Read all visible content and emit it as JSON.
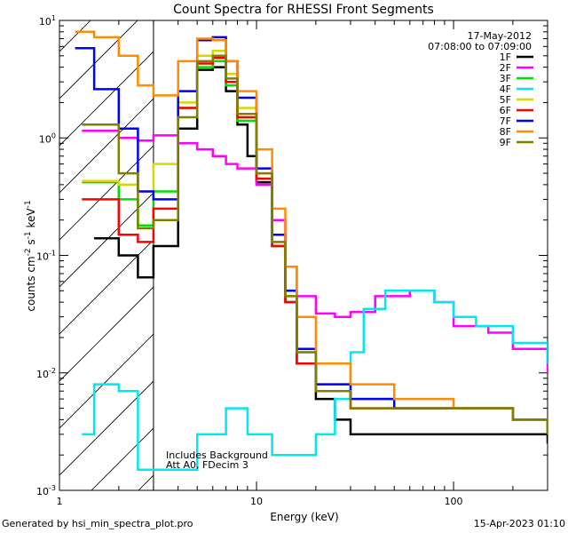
{
  "chart_data": {
    "type": "line",
    "title": "Count Spectra for RHESSI Front Segments",
    "xlabel": "Energy (keV)",
    "ylabel_parts": [
      "counts cm",
      "-2",
      " s",
      "-1",
      " keV",
      "-1"
    ],
    "xscale": "log",
    "yscale": "log",
    "xlim": [
      1,
      300
    ],
    "ylim": [
      0.001,
      10
    ],
    "x_tick_labels": [
      "1",
      "10",
      "100"
    ],
    "y_tick_labels": [
      {
        "base": "10",
        "exp": "1"
      },
      {
        "base": "10",
        "exp": "0"
      },
      {
        "base": "10",
        "exp": "-1"
      },
      {
        "base": "10",
        "exp": "-2"
      },
      {
        "base": "10",
        "exp": "-3"
      }
    ],
    "info_date": "17-May-2012",
    "info_time": "07:08:00 to 07:09:00",
    "annotation_line1": "Includes Background",
    "annotation_line2": "Att A0, FDecim 3",
    "excluded_region_keV": [
      1,
      3
    ],
    "series": [
      {
        "name": "1F",
        "color": "#000000",
        "points": [
          [
            1.5,
            0.14
          ],
          [
            2.0,
            0.1
          ],
          [
            2.5,
            0.065
          ],
          [
            3.0,
            0.12
          ],
          [
            4.0,
            1.2
          ],
          [
            5.0,
            3.8
          ],
          [
            6.0,
            4.0
          ],
          [
            7.0,
            2.5
          ],
          [
            8.0,
            1.3
          ],
          [
            9.0,
            0.7
          ],
          [
            10,
            0.42
          ],
          [
            12,
            0.12
          ],
          [
            14,
            0.04
          ],
          [
            16,
            0.012
          ],
          [
            20,
            0.006
          ],
          [
            25,
            0.004
          ],
          [
            30,
            0.003
          ],
          [
            40,
            0.003
          ],
          [
            60,
            0.003
          ],
          [
            100,
            0.003
          ],
          [
            150,
            0.003
          ],
          [
            200,
            0.003
          ],
          [
            300,
            0.0025
          ]
        ]
      },
      {
        "name": "2F",
        "color": "#ff00ff",
        "points": [
          [
            1.3,
            1.15
          ],
          [
            2.0,
            1.0
          ],
          [
            2.5,
            0.95
          ],
          [
            3.0,
            1.05
          ],
          [
            4.0,
            0.9
          ],
          [
            5.0,
            0.8
          ],
          [
            6.0,
            0.7
          ],
          [
            7.0,
            0.6
          ],
          [
            8.0,
            0.55
          ],
          [
            10,
            0.4
          ],
          [
            12,
            0.2
          ],
          [
            14,
            0.08
          ],
          [
            16,
            0.045
          ],
          [
            20,
            0.032
          ],
          [
            25,
            0.03
          ],
          [
            30,
            0.033
          ],
          [
            40,
            0.045
          ],
          [
            60,
            0.05
          ],
          [
            80,
            0.04
          ],
          [
            100,
            0.025
          ],
          [
            150,
            0.022
          ],
          [
            200,
            0.016
          ],
          [
            300,
            0.01
          ]
        ]
      },
      {
        "name": "3F",
        "color": "#00e000",
        "points": [
          [
            1.3,
            0.42
          ],
          [
            2.0,
            0.3
          ],
          [
            2.5,
            0.18
          ],
          [
            3.0,
            0.35
          ],
          [
            4.0,
            1.8
          ],
          [
            5.0,
            4.0
          ],
          [
            6.0,
            4.5
          ],
          [
            7.0,
            2.8
          ],
          [
            8.0,
            1.4
          ],
          [
            10,
            0.45
          ],
          [
            12,
            0.12
          ],
          [
            14,
            0.04
          ],
          [
            16,
            0.012
          ],
          [
            20,
            0.007
          ],
          [
            30,
            0.006
          ],
          [
            50,
            0.005
          ],
          [
            100,
            0.005
          ],
          [
            200,
            0.004
          ],
          [
            300,
            0.003
          ]
        ]
      },
      {
        "name": "4F",
        "color": "#00e8f0",
        "points": [
          [
            1.3,
            0.003
          ],
          [
            1.5,
            0.008
          ],
          [
            2.0,
            0.007
          ],
          [
            2.5,
            0.0015
          ],
          [
            5.0,
            0.003
          ],
          [
            7.0,
            0.005
          ],
          [
            9.0,
            0.003
          ],
          [
            12,
            0.002
          ],
          [
            14,
            0.002
          ],
          [
            20,
            0.003
          ],
          [
            25,
            0.006
          ],
          [
            30,
            0.015
          ],
          [
            35,
            0.035
          ],
          [
            45,
            0.05
          ],
          [
            60,
            0.05
          ],
          [
            80,
            0.04
          ],
          [
            100,
            0.03
          ],
          [
            130,
            0.025
          ],
          [
            150,
            0.025
          ],
          [
            200,
            0.018
          ],
          [
            300,
            0.012
          ]
        ]
      },
      {
        "name": "5F",
        "color": "#d8d800",
        "points": [
          [
            1.3,
            0.43
          ],
          [
            2.0,
            0.4
          ],
          [
            2.5,
            0.35
          ],
          [
            3.0,
            0.6
          ],
          [
            4.0,
            2.0
          ],
          [
            5.0,
            5.0
          ],
          [
            6.0,
            5.5
          ],
          [
            7.0,
            3.5
          ],
          [
            8.0,
            1.8
          ],
          [
            10,
            0.5
          ],
          [
            12,
            0.13
          ],
          [
            14,
            0.045
          ],
          [
            16,
            0.015
          ],
          [
            20,
            0.008
          ],
          [
            30,
            0.006
          ],
          [
            50,
            0.005
          ],
          [
            100,
            0.005
          ],
          [
            200,
            0.004
          ],
          [
            300,
            0.0035
          ]
        ]
      },
      {
        "name": "6F",
        "color": "#ff0000",
        "points": [
          [
            1.3,
            0.3
          ],
          [
            2.0,
            0.15
          ],
          [
            2.5,
            0.13
          ],
          [
            3.0,
            0.25
          ],
          [
            4.0,
            1.8
          ],
          [
            5.0,
            4.3
          ],
          [
            6.0,
            4.8
          ],
          [
            7.0,
            3.0
          ],
          [
            8.0,
            1.5
          ],
          [
            10,
            0.45
          ],
          [
            12,
            0.12
          ],
          [
            14,
            0.04
          ],
          [
            16,
            0.012
          ],
          [
            20,
            0.007
          ],
          [
            30,
            0.005
          ],
          [
            50,
            0.005
          ],
          [
            100,
            0.005
          ],
          [
            200,
            0.004
          ],
          [
            300,
            0.003
          ]
        ]
      },
      {
        "name": "7F",
        "color": "#0000ff",
        "points": [
          [
            1.2,
            5.8
          ],
          [
            1.5,
            2.6
          ],
          [
            2.0,
            1.2
          ],
          [
            2.5,
            0.35
          ],
          [
            3.0,
            0.3
          ],
          [
            4.0,
            2.5
          ],
          [
            5.0,
            6.8
          ],
          [
            6.0,
            7.2
          ],
          [
            7.0,
            4.5
          ],
          [
            8.0,
            2.2
          ],
          [
            10,
            0.55
          ],
          [
            12,
            0.15
          ],
          [
            14,
            0.05
          ],
          [
            16,
            0.016
          ],
          [
            20,
            0.008
          ],
          [
            30,
            0.006
          ],
          [
            50,
            0.005
          ],
          [
            100,
            0.005
          ],
          [
            200,
            0.004
          ],
          [
            300,
            0.003
          ]
        ]
      },
      {
        "name": "8F",
        "color": "#ff8c00",
        "points": [
          [
            1.2,
            8.0
          ],
          [
            1.5,
            7.2
          ],
          [
            2.0,
            5.0
          ],
          [
            2.5,
            2.8
          ],
          [
            3.0,
            2.3
          ],
          [
            4.0,
            4.5
          ],
          [
            5.0,
            7.0
          ],
          [
            6.0,
            6.8
          ],
          [
            7.0,
            4.5
          ],
          [
            8.0,
            2.5
          ],
          [
            10,
            0.8
          ],
          [
            12,
            0.25
          ],
          [
            14,
            0.08
          ],
          [
            16,
            0.03
          ],
          [
            20,
            0.012
          ],
          [
            30,
            0.008
          ],
          [
            50,
            0.006
          ],
          [
            100,
            0.005
          ],
          [
            200,
            0.004
          ],
          [
            300,
            0.003
          ]
        ]
      },
      {
        "name": "9F",
        "color": "#808000",
        "points": [
          [
            1.3,
            1.3
          ],
          [
            2.0,
            0.5
          ],
          [
            2.5,
            0.17
          ],
          [
            3.0,
            0.2
          ],
          [
            4.0,
            1.5
          ],
          [
            5.0,
            4.5
          ],
          [
            6.0,
            5.0
          ],
          [
            7.0,
            3.2
          ],
          [
            8.0,
            1.6
          ],
          [
            10,
            0.5
          ],
          [
            12,
            0.13
          ],
          [
            14,
            0.045
          ],
          [
            16,
            0.015
          ],
          [
            20,
            0.007
          ],
          [
            30,
            0.005
          ],
          [
            50,
            0.005
          ],
          [
            100,
            0.005
          ],
          [
            200,
            0.004
          ],
          [
            300,
            0.003
          ]
        ]
      }
    ]
  },
  "footer": {
    "generated_by": "Generated by hsi_min_spectra_plot.pro",
    "timestamp": "15-Apr-2023 01:10"
  }
}
